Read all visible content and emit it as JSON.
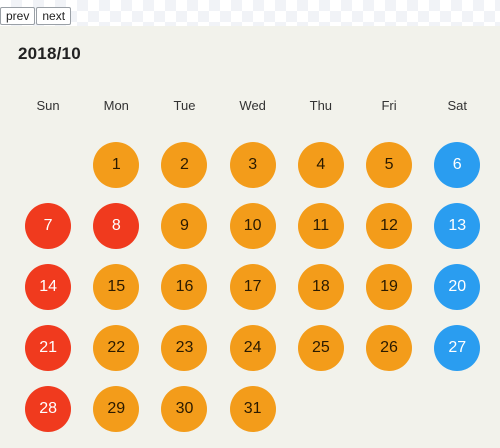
{
  "nav": {
    "prev_label": "prev",
    "next_label": "next"
  },
  "calendar": {
    "title": "2018/10",
    "weekdays": [
      "Sun",
      "Mon",
      "Tue",
      "Wed",
      "Thu",
      "Fri",
      "Sat"
    ],
    "start_offset": 1,
    "colors": {
      "weekday": "#f39c1a",
      "weekday_text": "#2a1a00",
      "saturday": "#2a9df0",
      "saturday_text": "#ffffff",
      "sunday_holiday": "#f03a1e",
      "sunday_holiday_text": "#ffffff"
    },
    "days": [
      {
        "label": "1",
        "kind": "weekday"
      },
      {
        "label": "2",
        "kind": "weekday"
      },
      {
        "label": "3",
        "kind": "weekday"
      },
      {
        "label": "4",
        "kind": "weekday"
      },
      {
        "label": "5",
        "kind": "weekday"
      },
      {
        "label": "6",
        "kind": "saturday"
      },
      {
        "label": "7",
        "kind": "sunday_holiday"
      },
      {
        "label": "8",
        "kind": "sunday_holiday"
      },
      {
        "label": "9",
        "kind": "weekday"
      },
      {
        "label": "10",
        "kind": "weekday"
      },
      {
        "label": "11",
        "kind": "weekday"
      },
      {
        "label": "12",
        "kind": "weekday"
      },
      {
        "label": "13",
        "kind": "saturday"
      },
      {
        "label": "14",
        "kind": "sunday_holiday"
      },
      {
        "label": "15",
        "kind": "weekday"
      },
      {
        "label": "16",
        "kind": "weekday"
      },
      {
        "label": "17",
        "kind": "weekday"
      },
      {
        "label": "18",
        "kind": "weekday"
      },
      {
        "label": "19",
        "kind": "weekday"
      },
      {
        "label": "20",
        "kind": "saturday"
      },
      {
        "label": "21",
        "kind": "sunday_holiday"
      },
      {
        "label": "22",
        "kind": "weekday"
      },
      {
        "label": "23",
        "kind": "weekday"
      },
      {
        "label": "24",
        "kind": "weekday"
      },
      {
        "label": "25",
        "kind": "weekday"
      },
      {
        "label": "26",
        "kind": "weekday"
      },
      {
        "label": "27",
        "kind": "saturday"
      },
      {
        "label": "28",
        "kind": "sunday_holiday"
      },
      {
        "label": "29",
        "kind": "weekday"
      },
      {
        "label": "30",
        "kind": "weekday"
      },
      {
        "label": "31",
        "kind": "weekday"
      }
    ]
  }
}
